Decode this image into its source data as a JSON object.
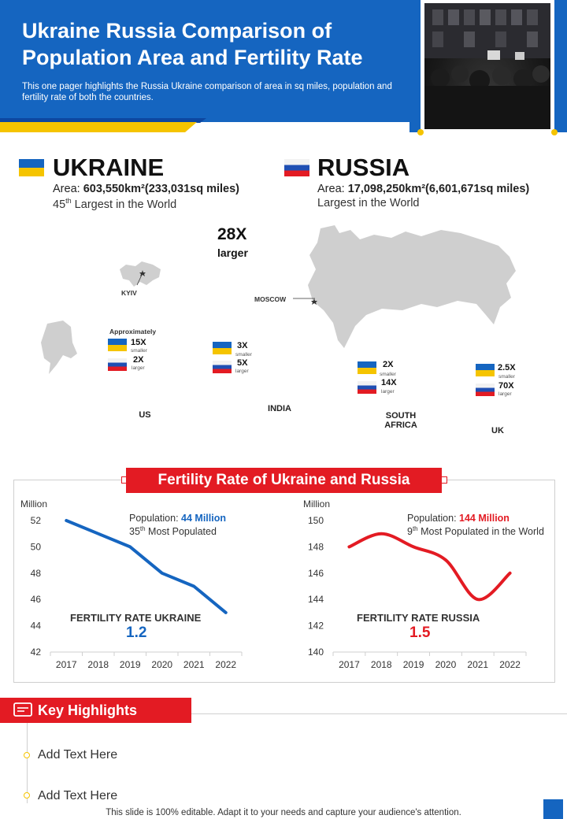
{
  "header": {
    "title": "Ukraine Russia Comparison of\nPopulation Area and Fertility Rate",
    "description": "This one pager highlights the Russia Ukraine comparison of area in sq miles, population and fertility rate of both the countries."
  },
  "colors": {
    "blue": "#1565c0",
    "yellow": "#f5c400",
    "red": "#e31b23"
  },
  "ukraine": {
    "name": "UKRAINE",
    "area_label": "Area: ",
    "area_value": "603,550km²(233,031sq miles)",
    "rank_num": "45",
    "rank_sup": "th",
    "rank_text": " Largest in the World"
  },
  "russia": {
    "name": "RUSSIA",
    "area_label": "Area: ",
    "area_value": "17,098,250km²(6,601,671sq miles)",
    "rank_text": "Largest in the World"
  },
  "maps": {
    "ratio": "28X",
    "ratio_sub": "larger",
    "kyiv": "KYIV",
    "moscow": "MOSCOW",
    "approx": "Approximately",
    "comparisons": [
      {
        "country": "US",
        "ua": "15X",
        "ua_sub": "smaller",
        "ru": "2X",
        "ru_sub": "larger"
      },
      {
        "country": "INDIA",
        "ua": "3X",
        "ua_sub": "smaller",
        "ru": "5X",
        "ru_sub": "larger"
      },
      {
        "country": "SOUTH\nAFRICA",
        "ua": "2X",
        "ua_sub": "smaller",
        "ru": "14X",
        "ru_sub": "larger"
      },
      {
        "country": "UK",
        "ua": "2.5X",
        "ua_sub": "smaller",
        "ru": "70X",
        "ru_sub": "larger"
      }
    ]
  },
  "fertility": {
    "title": "Fertility Rate of Ukraine and Russia",
    "ukraine": {
      "pop_label": "Population: ",
      "pop_value": "44 Million",
      "rank_num": "35",
      "rank_sup": "th",
      "rank_text": " Most Populated",
      "rate_label": "FERTILITY RATE UKRAINE",
      "rate_value": "1.2"
    },
    "russia": {
      "pop_label": "Population: ",
      "pop_value": "144 Million",
      "rank_num": "9",
      "rank_sup": "th",
      "rank_text": " Most Populated in the World",
      "rate_label": "FERTILITY RATE RUSSIA",
      "rate_value": "1.5"
    }
  },
  "chart_data": [
    {
      "type": "line",
      "ylabel": "Million",
      "x": [
        "2017",
        "2018",
        "2019",
        "2020",
        "2021",
        "2022"
      ],
      "values": [
        52,
        51,
        50,
        48,
        47,
        45
      ],
      "ylim": [
        42,
        52
      ],
      "yticks": [
        42,
        44,
        46,
        48,
        50,
        52
      ],
      "color": "#1565c0"
    },
    {
      "type": "line",
      "ylabel": "Million",
      "x": [
        "2017",
        "2018",
        "2019",
        "2020",
        "2021",
        "2022"
      ],
      "values": [
        148,
        149,
        148,
        147,
        144,
        146
      ],
      "ylim": [
        140,
        150
      ],
      "yticks": [
        140,
        142,
        144,
        146,
        148,
        150
      ],
      "color": "#e31b23"
    }
  ],
  "highlights": {
    "title": "Key Highlights",
    "items": [
      "Add Text Here",
      "Add Text Here"
    ]
  },
  "footer": "This slide is 100% editable. Adapt it to your needs and capture your audience's attention."
}
